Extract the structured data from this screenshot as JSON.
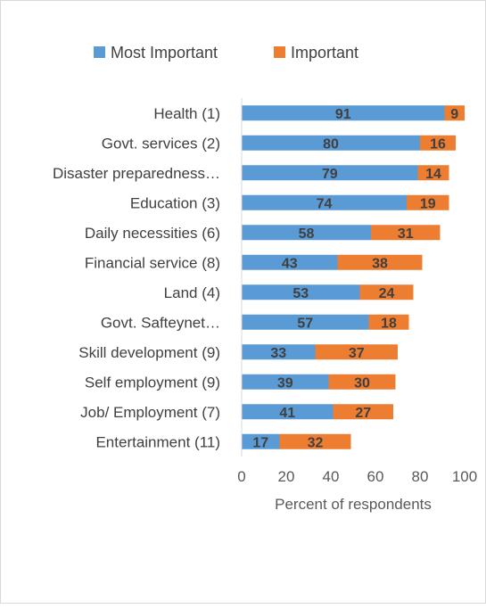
{
  "chart_data": {
    "type": "bar",
    "orientation": "horizontal",
    "stacked": true,
    "title": "",
    "xlabel": "Percent of respondents",
    "ylabel": "",
    "xlim": [
      0,
      100
    ],
    "x_ticks": [
      "0",
      "20",
      "40",
      "60",
      "80",
      "100"
    ],
    "grid": false,
    "legend_position": "top",
    "categories": [
      "Health (1)",
      "Govt. services (2)",
      "Disaster preparedness…",
      "Education (3)",
      "Daily necessities (6)",
      "Financial service (8)",
      "Land (4)",
      "Govt. Safteynet…",
      "Skill development (9)",
      "Self employment (9)",
      "Job/ Employment (7)",
      "Entertainment (11)"
    ],
    "series": [
      {
        "name": "Most Important",
        "color": "#5b9bd5",
        "values": [
          91,
          80,
          79,
          74,
          58,
          43,
          53,
          57,
          33,
          39,
          41,
          17
        ]
      },
      {
        "name": "Important",
        "color": "#ed7d31",
        "values": [
          9,
          16,
          14,
          19,
          31,
          38,
          24,
          18,
          37,
          30,
          27,
          32
        ]
      }
    ]
  }
}
